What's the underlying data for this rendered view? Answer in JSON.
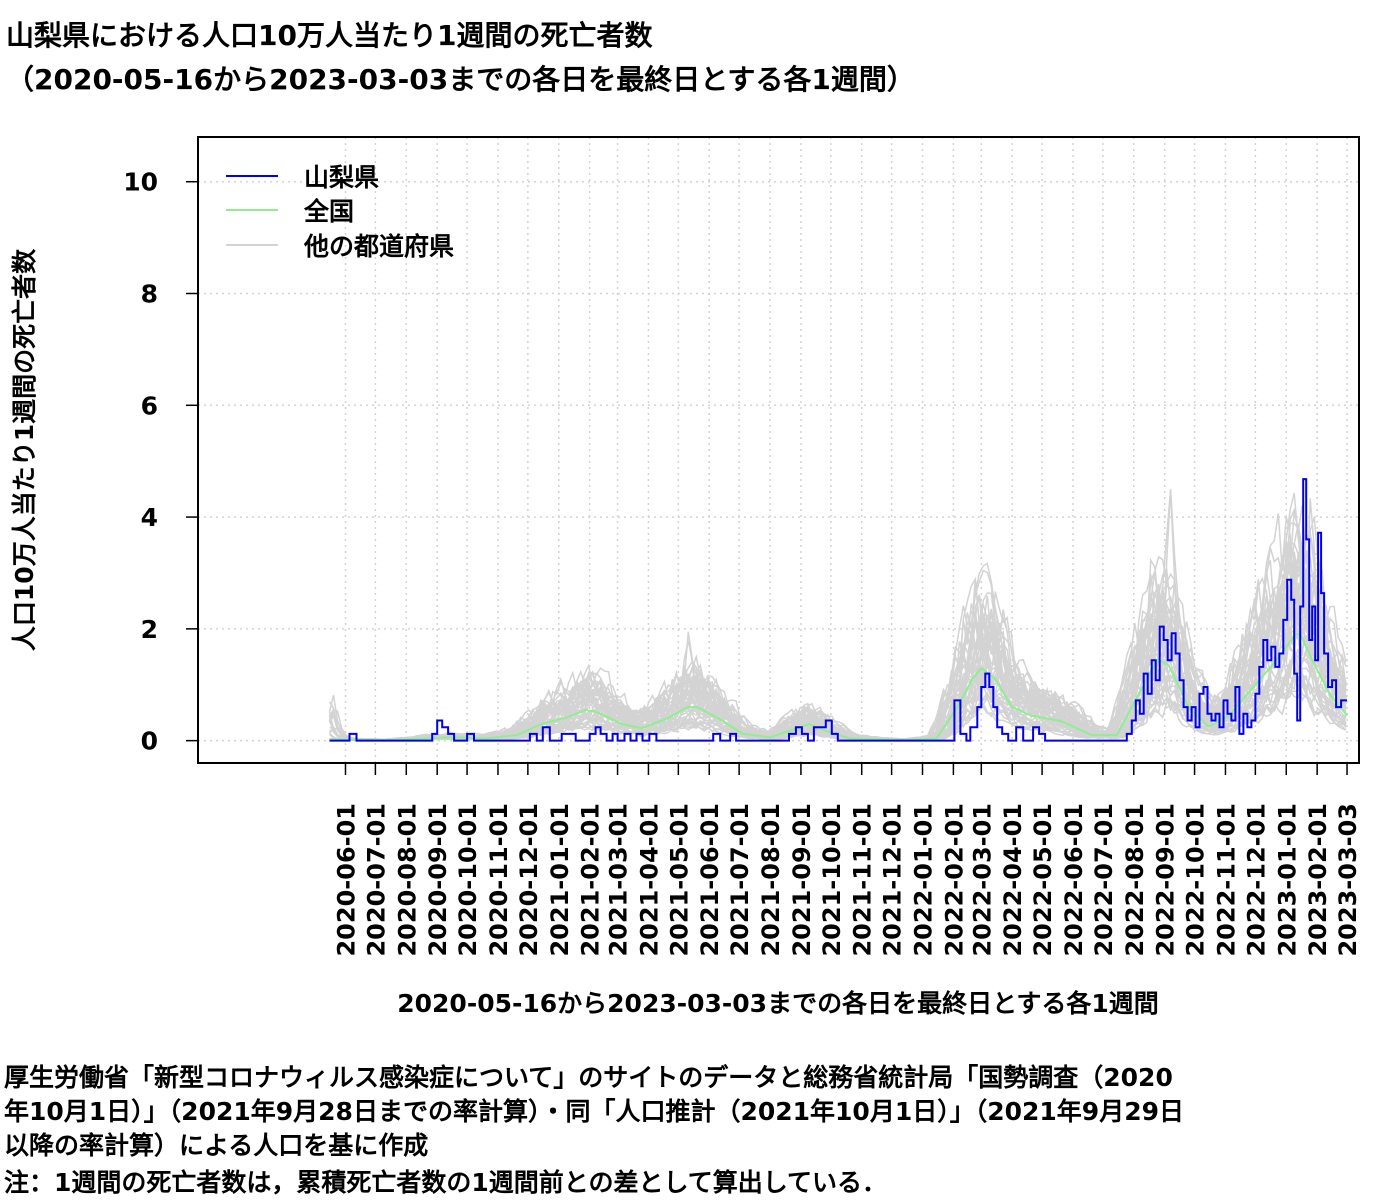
{
  "header": {
    "title_line1": "山梨県における人口10万人当たり1週間の死亡者数",
    "title_line2": "（2020-05-16から2023-03-03までの各日を最終日とする各1週間）"
  },
  "footer": {
    "line1": "厚生労働省「新型コロナウィルス感染症について」のサイトのデータと総務省統計局「国勢調査（2020",
    "line2": "年10月1日）」（2021年9月28日までの率計算）・同「人口推計（2021年10月1日）」（2021年9月29日",
    "line3": "以降の率計算）による人口を基に作成",
    "line4": "注：1週間の死亡者数は，累積死亡者数の1週間前との差として算出している．"
  },
  "chart_data": {
    "type": "line",
    "xlabel": "2020-05-16から2023-03-03までの各日を最終日とする各1週間",
    "ylabel": "人口10万人当たり1週間の死亡者数",
    "x_range": [
      "2020-05-16",
      "2023-03-03"
    ],
    "xlim": [
      "2020-01-05",
      "2023-03-15"
    ],
    "ylim": [
      -0.4,
      10.8
    ],
    "yticks": [
      0,
      2,
      4,
      6,
      8,
      10
    ],
    "xticks": [
      "2020-06-01",
      "2020-07-01",
      "2020-08-01",
      "2020-09-01",
      "2020-10-01",
      "2020-11-01",
      "2020-12-01",
      "2021-01-01",
      "2021-02-01",
      "2021-03-01",
      "2021-04-01",
      "2021-05-01",
      "2021-06-01",
      "2021-07-01",
      "2021-08-01",
      "2021-09-01",
      "2021-10-01",
      "2021-11-01",
      "2021-12-01",
      "2022-01-01",
      "2022-02-01",
      "2022-03-01",
      "2022-04-01",
      "2022-05-01",
      "2022-06-01",
      "2022-07-01",
      "2022-08-01",
      "2022-09-01",
      "2022-10-01",
      "2022-11-01",
      "2022-12-01",
      "2023-01-01",
      "2023-02-01",
      "2023-03-03"
    ],
    "grid": true,
    "legend_position": "top-left",
    "series": [
      {
        "name": "山梨県",
        "color": "#0000ee",
        "points": [
          [
            "2020-05-16",
            0
          ],
          [
            "2020-06-01",
            0
          ],
          [
            "2020-06-05",
            0.12
          ],
          [
            "2020-06-12",
            0
          ],
          [
            "2020-08-20",
            0
          ],
          [
            "2020-08-27",
            0.12
          ],
          [
            "2020-09-01",
            0.36
          ],
          [
            "2020-09-06",
            0.24
          ],
          [
            "2020-09-12",
            0.12
          ],
          [
            "2020-09-18",
            0
          ],
          [
            "2020-09-26",
            0
          ],
          [
            "2020-10-01",
            0.12
          ],
          [
            "2020-10-08",
            0
          ],
          [
            "2020-11-28",
            0
          ],
          [
            "2020-12-03",
            0.12
          ],
          [
            "2020-12-10",
            0
          ],
          [
            "2020-12-16",
            0.24
          ],
          [
            "2020-12-23",
            0
          ],
          [
            "2021-01-04",
            0.12
          ],
          [
            "2021-01-11",
            0.12
          ],
          [
            "2021-01-18",
            0
          ],
          [
            "2021-01-28",
            0
          ],
          [
            "2021-02-01",
            0.12
          ],
          [
            "2021-02-07",
            0.24
          ],
          [
            "2021-02-12",
            0.12
          ],
          [
            "2021-02-18",
            0
          ],
          [
            "2021-02-24",
            0.12
          ],
          [
            "2021-03-01",
            0
          ],
          [
            "2021-03-08",
            0.12
          ],
          [
            "2021-03-14",
            0
          ],
          [
            "2021-03-20",
            0.12
          ],
          [
            "2021-03-26",
            0
          ],
          [
            "2021-04-02",
            0.12
          ],
          [
            "2021-04-09",
            0
          ],
          [
            "2021-06-01",
            0
          ],
          [
            "2021-06-05",
            0.12
          ],
          [
            "2021-06-12",
            0
          ],
          [
            "2021-06-22",
            0.12
          ],
          [
            "2021-06-28",
            0
          ],
          [
            "2021-08-15",
            0
          ],
          [
            "2021-08-20",
            0.12
          ],
          [
            "2021-08-27",
            0.24
          ],
          [
            "2021-09-02",
            0.12
          ],
          [
            "2021-09-08",
            0
          ],
          [
            "2021-09-14",
            0.24
          ],
          [
            "2021-09-20",
            0.24
          ],
          [
            "2021-09-26",
            0.36
          ],
          [
            "2021-10-02",
            0.12
          ],
          [
            "2021-10-08",
            0
          ],
          [
            "2022-01-28",
            0
          ],
          [
            "2022-02-02",
            0.72
          ],
          [
            "2022-02-08",
            0.12
          ],
          [
            "2022-02-14",
            0
          ],
          [
            "2022-02-18",
            0.24
          ],
          [
            "2022-02-25",
            0.6
          ],
          [
            "2022-03-01",
            0.96
          ],
          [
            "2022-03-05",
            1.2
          ],
          [
            "2022-03-09",
            0.96
          ],
          [
            "2022-03-13",
            0.6
          ],
          [
            "2022-03-17",
            0.24
          ],
          [
            "2022-03-22",
            0.12
          ],
          [
            "2022-03-28",
            0
          ],
          [
            "2022-04-05",
            0.24
          ],
          [
            "2022-04-12",
            0
          ],
          [
            "2022-04-22",
            0.24
          ],
          [
            "2022-04-28",
            0.12
          ],
          [
            "2022-05-04",
            0
          ],
          [
            "2022-07-20",
            0
          ],
          [
            "2022-07-25",
            0.12
          ],
          [
            "2022-07-30",
            0.36
          ],
          [
            "2022-08-03",
            0.72
          ],
          [
            "2022-08-07",
            0.48
          ],
          [
            "2022-08-11",
            1.2
          ],
          [
            "2022-08-15",
            0.84
          ],
          [
            "2022-08-19",
            1.44
          ],
          [
            "2022-08-23",
            1.08
          ],
          [
            "2022-08-27",
            2.04
          ],
          [
            "2022-08-31",
            1.8
          ],
          [
            "2022-09-04",
            1.44
          ],
          [
            "2022-09-08",
            1.92
          ],
          [
            "2022-09-12",
            1.56
          ],
          [
            "2022-09-16",
            1.08
          ],
          [
            "2022-09-20",
            0.6
          ],
          [
            "2022-09-24",
            0.36
          ],
          [
            "2022-09-28",
            0.6
          ],
          [
            "2022-10-02",
            0.24
          ],
          [
            "2022-10-06",
            0.84
          ],
          [
            "2022-10-10",
            0.96
          ],
          [
            "2022-10-14",
            0.48
          ],
          [
            "2022-10-18",
            0.36
          ],
          [
            "2022-10-22",
            0.48
          ],
          [
            "2022-10-26",
            0.24
          ],
          [
            "2022-10-30",
            0.72
          ],
          [
            "2022-11-03",
            0.48
          ],
          [
            "2022-11-07",
            0.36
          ],
          [
            "2022-11-11",
            0.96
          ],
          [
            "2022-11-15",
            0.12
          ],
          [
            "2022-11-19",
            0.48
          ],
          [
            "2022-11-23",
            0.24
          ],
          [
            "2022-11-27",
            0.36
          ],
          [
            "2022-12-01",
            0.84
          ],
          [
            "2022-12-05",
            1.32
          ],
          [
            "2022-12-09",
            1.8
          ],
          [
            "2022-12-13",
            1.44
          ],
          [
            "2022-12-17",
            1.68
          ],
          [
            "2022-12-21",
            1.32
          ],
          [
            "2022-12-25",
            1.56
          ],
          [
            "2022-12-29",
            2.16
          ],
          [
            "2023-01-02",
            2.88
          ],
          [
            "2023-01-06",
            2.52
          ],
          [
            "2023-01-09",
            1.2
          ],
          [
            "2023-01-12",
            0.36
          ],
          [
            "2023-01-15",
            2.4
          ],
          [
            "2023-01-18",
            4.68
          ],
          [
            "2023-01-21",
            3.6
          ],
          [
            "2023-01-24",
            1.8
          ],
          [
            "2023-01-27",
            2.4
          ],
          [
            "2023-01-30",
            1.44
          ],
          [
            "2023-02-02",
            3.72
          ],
          [
            "2023-02-05",
            2.64
          ],
          [
            "2023-02-08",
            1.56
          ],
          [
            "2023-02-12",
            0.96
          ],
          [
            "2023-02-16",
            1.08
          ],
          [
            "2023-02-20",
            0.6
          ],
          [
            "2023-02-25",
            0.72
          ],
          [
            "2023-03-03",
            0.72
          ]
        ]
      },
      {
        "name": "全国",
        "color": "#90ee90",
        "points": [
          [
            "2020-05-16",
            0.02
          ],
          [
            "2020-07-15",
            0.01
          ],
          [
            "2020-08-20",
            0.04
          ],
          [
            "2020-09-15",
            0.06
          ],
          [
            "2020-10-20",
            0.04
          ],
          [
            "2020-11-20",
            0.1
          ],
          [
            "2020-12-15",
            0.3
          ],
          [
            "2021-01-10",
            0.42
          ],
          [
            "2021-01-28",
            0.55
          ],
          [
            "2021-02-10",
            0.5
          ],
          [
            "2021-03-05",
            0.3
          ],
          [
            "2021-03-25",
            0.22
          ],
          [
            "2021-04-20",
            0.4
          ],
          [
            "2021-05-10",
            0.6
          ],
          [
            "2021-05-20",
            0.6
          ],
          [
            "2021-06-10",
            0.4
          ],
          [
            "2021-07-05",
            0.12
          ],
          [
            "2021-08-01",
            0.06
          ],
          [
            "2021-08-25",
            0.2
          ],
          [
            "2021-09-10",
            0.3
          ],
          [
            "2021-09-25",
            0.18
          ],
          [
            "2021-10-20",
            0.04
          ],
          [
            "2021-12-15",
            0.01
          ],
          [
            "2022-01-15",
            0.04
          ],
          [
            "2022-02-05",
            0.6
          ],
          [
            "2022-02-20",
            1.1
          ],
          [
            "2022-03-01",
            1.3
          ],
          [
            "2022-03-15",
            1.1
          ],
          [
            "2022-04-01",
            0.6
          ],
          [
            "2022-04-20",
            0.45
          ],
          [
            "2022-05-20",
            0.35
          ],
          [
            "2022-06-20",
            0.1
          ],
          [
            "2022-07-15",
            0.1
          ],
          [
            "2022-08-05",
            0.8
          ],
          [
            "2022-08-25",
            1.45
          ],
          [
            "2022-09-05",
            1.35
          ],
          [
            "2022-09-25",
            0.6
          ],
          [
            "2022-10-15",
            0.25
          ],
          [
            "2022-11-05",
            0.45
          ],
          [
            "2022-12-01",
            1.0
          ],
          [
            "2022-12-25",
            1.5
          ],
          [
            "2023-01-10",
            1.9
          ],
          [
            "2023-01-15",
            1.9
          ],
          [
            "2023-01-31",
            1.3
          ],
          [
            "2023-02-15",
            0.8
          ],
          [
            "2023-03-03",
            0.45
          ]
        ]
      },
      {
        "name": "他の都道府県",
        "color": "#d3d3d3"
      }
    ]
  }
}
